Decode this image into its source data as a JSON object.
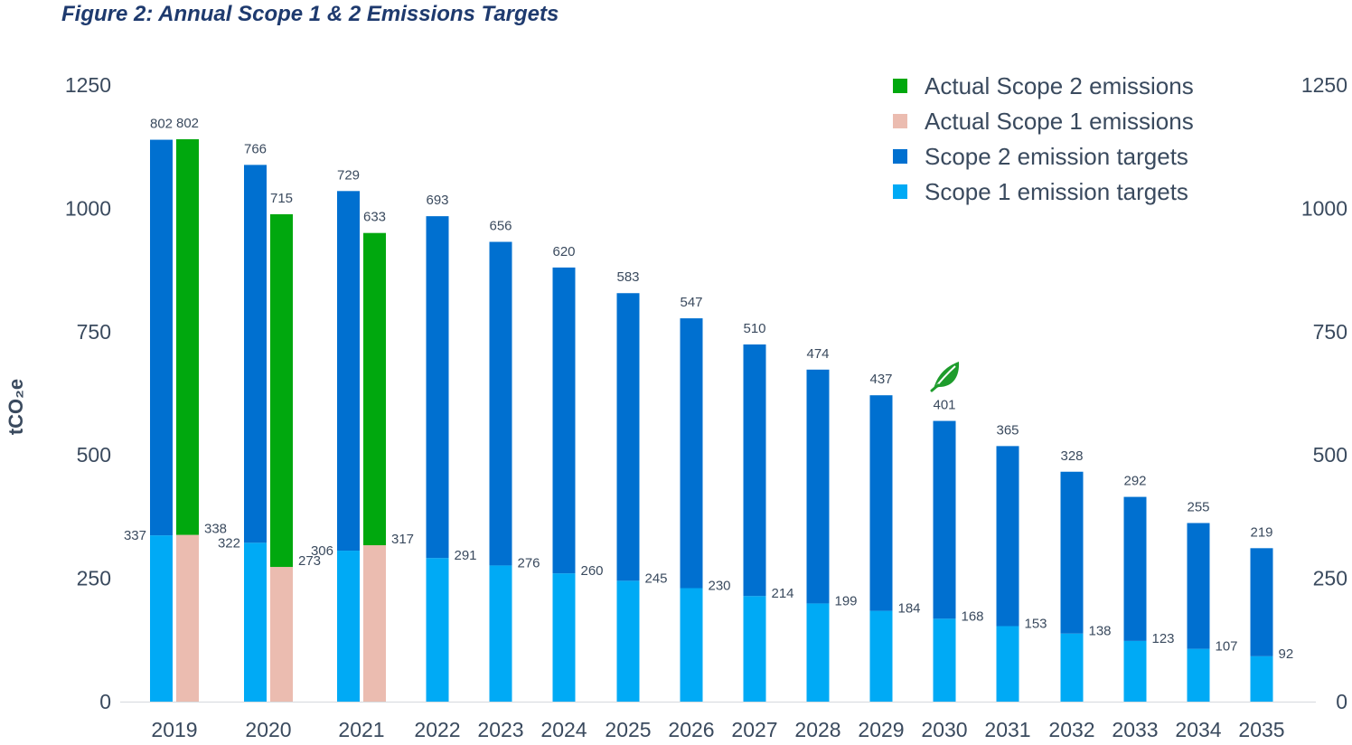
{
  "chart_data": {
    "type": "bar",
    "title": "Figure 2: Annual Scope 1 & 2 Emissions Targets",
    "ylabel": "tCO₂e",
    "ylim": [
      0,
      1250
    ],
    "yticks": [
      "0",
      "250",
      "500",
      "750",
      "1000",
      "1250"
    ],
    "categories": [
      "2019",
      "2020",
      "2021",
      "2022",
      "2023",
      "2024",
      "2025",
      "2026",
      "2027",
      "2028",
      "2029",
      "2030",
      "2031",
      "2032",
      "2033",
      "2034",
      "2035"
    ],
    "series": [
      {
        "name": "Scope 1 emission targets",
        "color": "#00aaf5",
        "stack": "targets",
        "values": [
          337,
          322,
          306,
          291,
          276,
          260,
          245,
          230,
          214,
          199,
          184,
          168,
          153,
          138,
          123,
          107,
          92
        ]
      },
      {
        "name": "Scope 2 emission targets",
        "color": "#0070d0",
        "stack": "targets",
        "values": [
          802,
          766,
          729,
          693,
          656,
          620,
          583,
          547,
          510,
          474,
          437,
          401,
          365,
          328,
          292,
          255,
          219
        ]
      },
      {
        "name": "Actual Scope 1 emissions",
        "color": "#ebbcb0",
        "stack": "actual",
        "values": [
          338,
          273,
          317,
          null,
          null,
          null,
          null,
          null,
          null,
          null,
          null,
          null,
          null,
          null,
          null,
          null,
          null
        ]
      },
      {
        "name": "Actual Scope 2 emissions",
        "color": "#00a80e",
        "stack": "actual",
        "values": [
          802,
          715,
          633,
          null,
          null,
          null,
          null,
          null,
          null,
          null,
          null,
          null,
          null,
          null,
          null,
          null,
          null
        ]
      }
    ],
    "legend": [
      "Actual Scope 2 emissions",
      "Actual Scope 1 emissions",
      "Scope 2 emission targets",
      "Scope 1 emission targets"
    ],
    "legend_position": "top-right",
    "annotation_icon": "leaf-icon",
    "annotation_category": "2030"
  }
}
